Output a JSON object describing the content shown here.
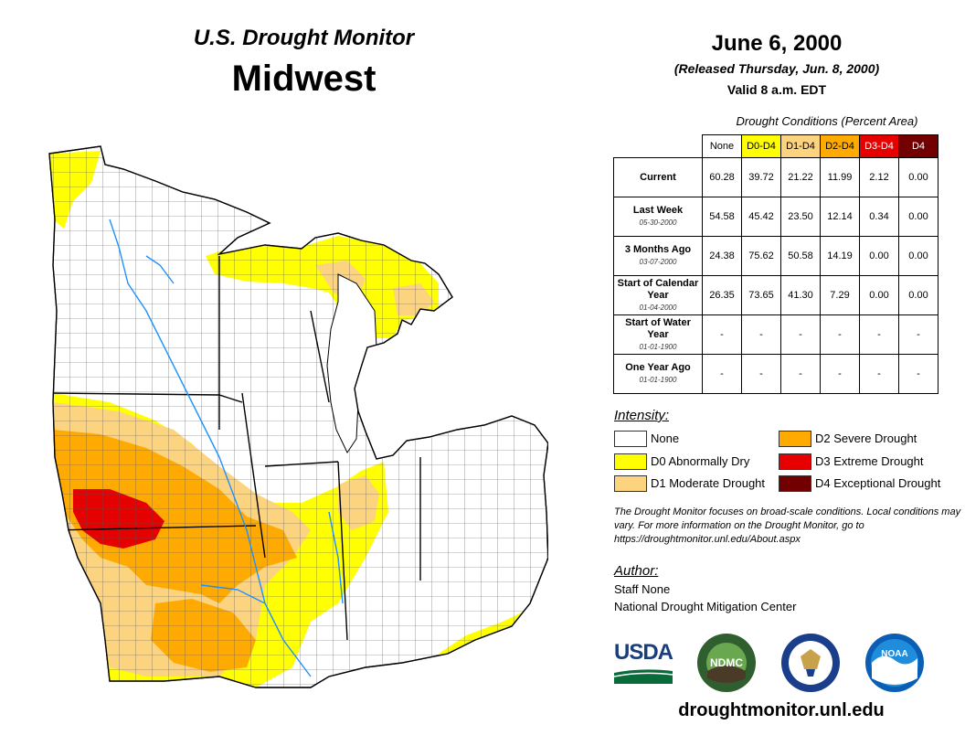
{
  "header": {
    "monitor_title": "U.S. Drought Monitor",
    "region": "Midwest",
    "date": "June 6, 2000",
    "released": "(Released Thursday, Jun. 8, 2000)",
    "valid": "Valid 8 a.m. EDT"
  },
  "table": {
    "caption": "Drought Conditions (Percent Area)",
    "columns": [
      "None",
      "D0-D4",
      "D1-D4",
      "D2-D4",
      "D3-D4",
      "D4"
    ],
    "column_colors": [
      "#ffffff",
      "#ffff00",
      "#fcd37f",
      "#ffaa00",
      "#e60000",
      "#730000"
    ],
    "rows": [
      {
        "label": "Current",
        "date": "",
        "values": [
          "60.28",
          "39.72",
          "21.22",
          "11.99",
          "2.12",
          "0.00"
        ]
      },
      {
        "label": "Last Week",
        "date": "05-30-2000",
        "values": [
          "54.58",
          "45.42",
          "23.50",
          "12.14",
          "0.34",
          "0.00"
        ]
      },
      {
        "label": "3 Months Ago",
        "date": "03-07-2000",
        "values": [
          "24.38",
          "75.62",
          "50.58",
          "14.19",
          "0.00",
          "0.00"
        ]
      },
      {
        "label": "Start of Calendar Year",
        "date": "01-04-2000",
        "values": [
          "26.35",
          "73.65",
          "41.30",
          "7.29",
          "0.00",
          "0.00"
        ]
      },
      {
        "label": "Start of Water Year",
        "date": "01-01-1900",
        "values": [
          "-",
          "-",
          "-",
          "-",
          "-",
          "-"
        ]
      },
      {
        "label": "One Year Ago",
        "date": "01-01-1900",
        "values": [
          "-",
          "-",
          "-",
          "-",
          "-",
          "-"
        ]
      }
    ]
  },
  "legend": {
    "title": "Intensity:",
    "items": [
      {
        "label": "None",
        "color": "#ffffff"
      },
      {
        "label": "D0 Abnormally Dry",
        "color": "#ffff00"
      },
      {
        "label": "D1 Moderate Drought",
        "color": "#fcd37f"
      },
      {
        "label": "D2 Severe Drought",
        "color": "#ffaa00"
      },
      {
        "label": "D3 Extreme Drought",
        "color": "#e60000"
      },
      {
        "label": "D4 Exceptional Drought",
        "color": "#730000"
      }
    ]
  },
  "note": "The Drought Monitor focuses on broad-scale conditions. Local conditions may vary. For more information on the Drought Monitor, go to https://droughtmonitor.unl.edu/About.aspx",
  "author": {
    "heading": "Author:",
    "name": "Staff None",
    "org": "National Drought Mitigation Center"
  },
  "logos": {
    "usda": "USDA",
    "ndmc": "NDMC",
    "noaa": "NOAA"
  },
  "url": "droughtmonitor.unl.edu"
}
